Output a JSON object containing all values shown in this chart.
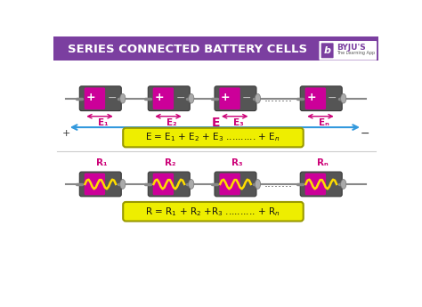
{
  "title": "SERIES CONNECTED BATTERY CELLS",
  "title_color": "#ffffff",
  "header_bg": "#7B3FA0",
  "bg_color": "#ffffff",
  "battery_labels_E": [
    "E₁",
    "E₂",
    "E₃",
    "Eₙ"
  ],
  "battery_labels_R": [
    "R₁",
    "R₂",
    "R₃",
    "Rₙ"
  ],
  "pink_color": "#CC0077",
  "magenta_band": "#CC0099",
  "gray_body": "#555555",
  "dark_gray": "#3a3a3a",
  "arrow_color": "#33AADD",
  "eq_bg": "#EEEE00",
  "eq_border": "#999900",
  "separator_color": "#CCCCCC",
  "byju_purple": "#7B3FA0",
  "wire_color": "#888888",
  "connector_color": "#999999",
  "plus_color": "#ffffff",
  "minus_color": "#bbbbbb",
  "zigzag_color": "#FFDD00",
  "label_E_color": "#CC0077",
  "label_R_color": "#CC0077",
  "dot_color": "#444444",
  "E_label_color": "#CC0077",
  "blue_arrow_color": "#3399DD",
  "plus_sign_color": "#333333",
  "minus_sign_color": "#333333"
}
